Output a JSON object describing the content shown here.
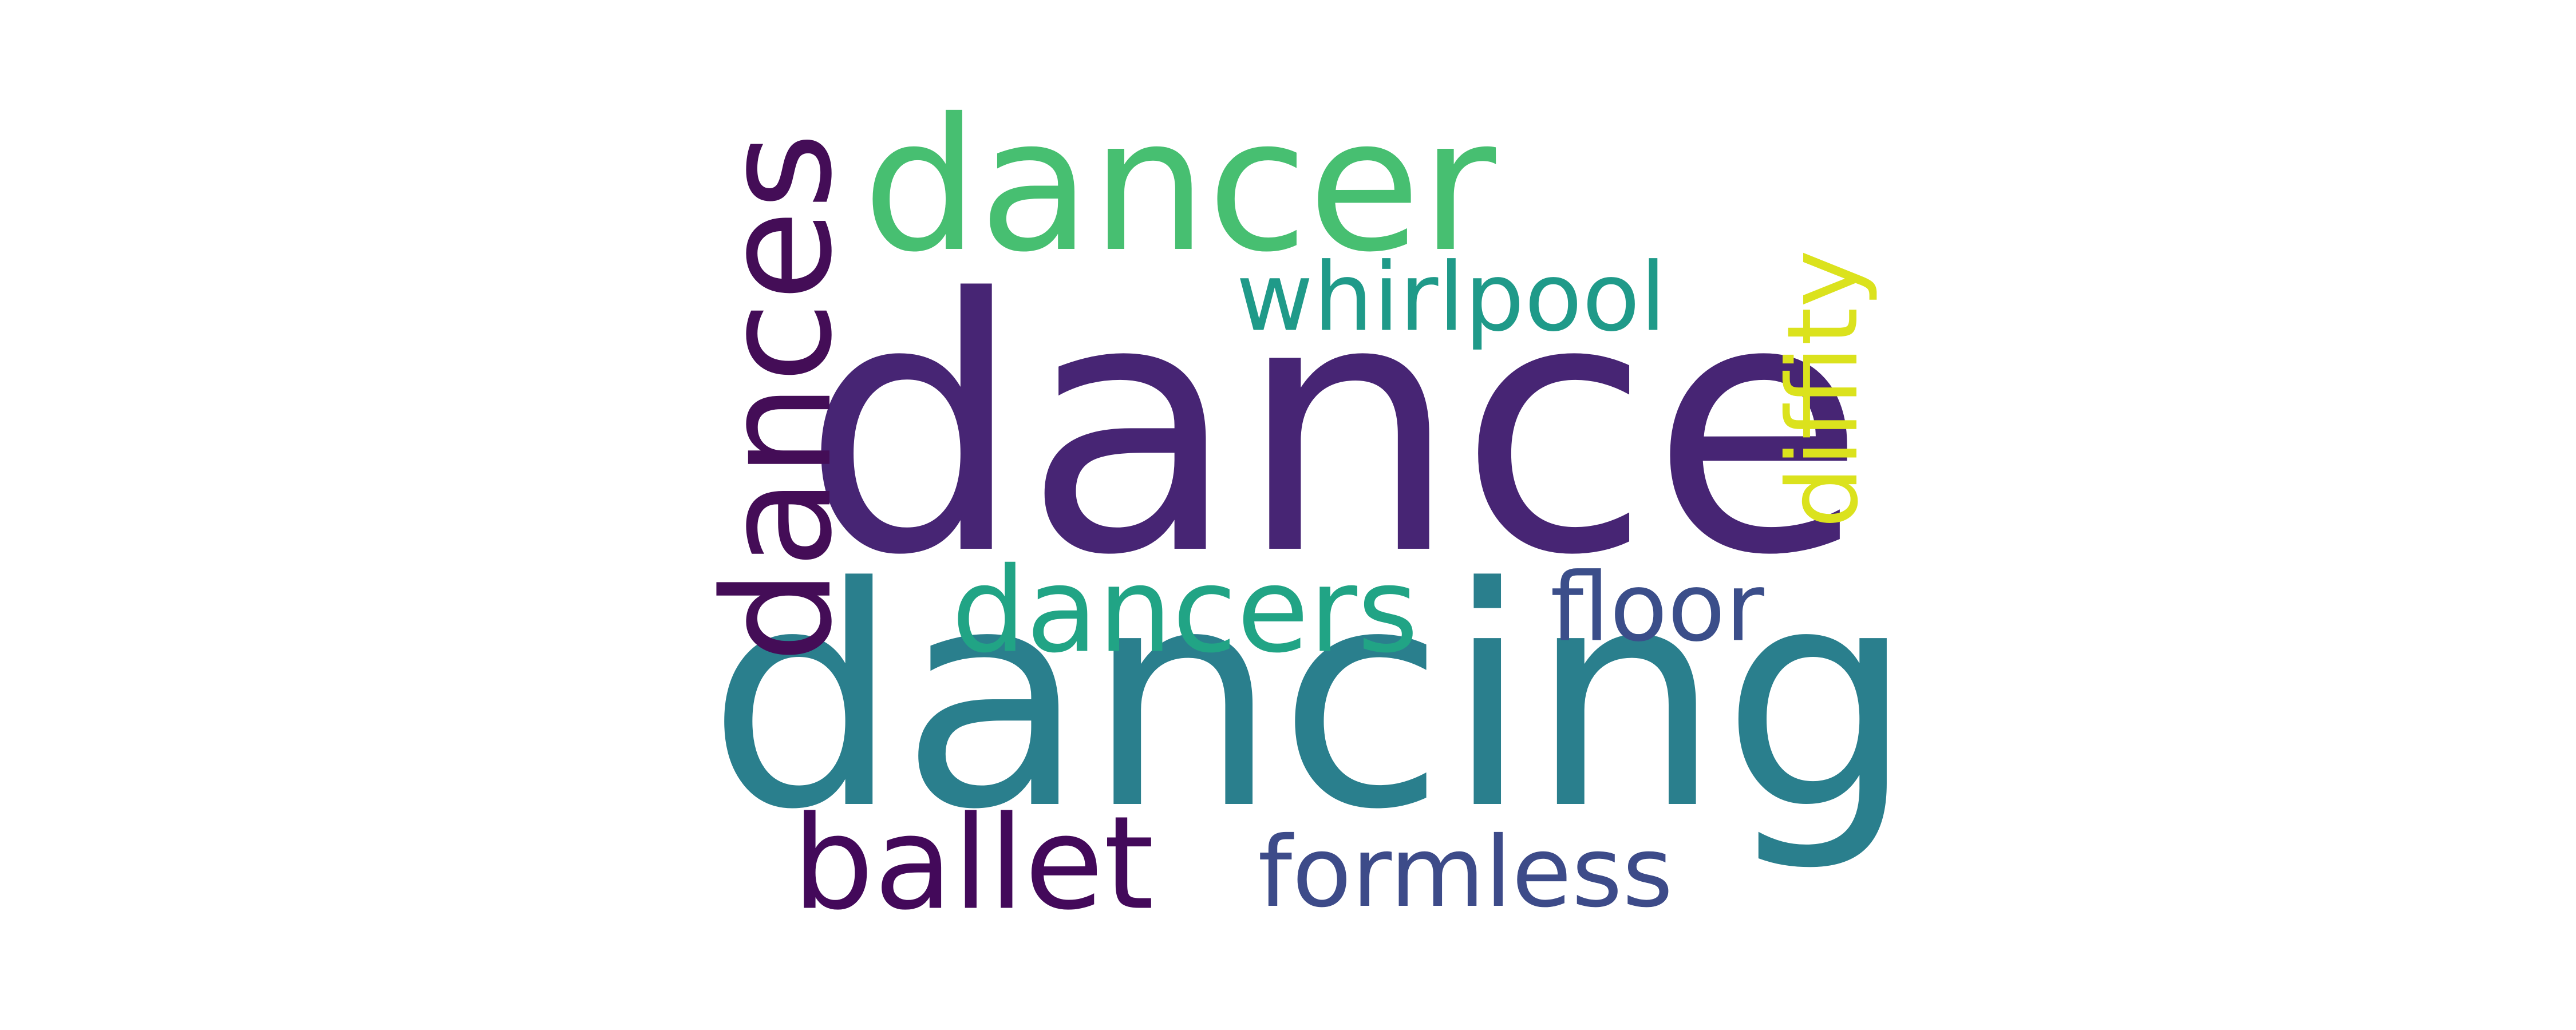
{
  "words": {
    "dance": {
      "text": "dance",
      "color": "#472574"
    },
    "dancing": {
      "text": "dancing",
      "color": "#2a7f8d"
    },
    "dancer": {
      "text": "dancer",
      "color": "#47bf71"
    },
    "dances": {
      "text": "dances",
      "color": "#440d57"
    },
    "dancers": {
      "text": "dancers",
      "color": "#21a485"
    },
    "whirlpool": {
      "text": "whirlpool",
      "color": "#1f9a89"
    },
    "ballet": {
      "text": "ballet",
      "color": "#43095a"
    },
    "formless": {
      "text": "formless",
      "color": "#3d4b89"
    },
    "floor": {
      "text": "floor",
      "color": "#3b4e8a"
    },
    "diffity": {
      "text": "diffity",
      "color": "#dbe21d"
    }
  }
}
